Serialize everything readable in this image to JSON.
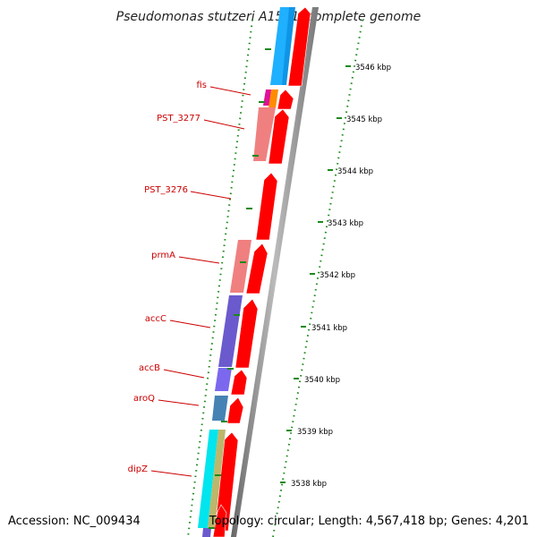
{
  "header": {
    "title": "Pseudomonas stutzeri A1501, complete genome"
  },
  "footer": {
    "accession": "Accession: NC_009434",
    "summary": "Topology: circular; Length: 4,567,418 bp; Genes: 4,201"
  },
  "gene_labels": [
    {
      "name": "fis"
    },
    {
      "name": "PST_3277"
    },
    {
      "name": "PST_3276"
    },
    {
      "name": "prmA"
    },
    {
      "name": "accC"
    },
    {
      "name": "accB"
    },
    {
      "name": "aroQ"
    },
    {
      "name": "dipZ"
    }
  ],
  "scale_ticks": [
    {
      "label": "3546 kbp"
    },
    {
      "label": "3545 kbp"
    },
    {
      "label": "3544 kbp"
    },
    {
      "label": "3543 kbp"
    },
    {
      "label": "3542 kbp"
    },
    {
      "label": "3541 kbp"
    },
    {
      "label": "3540 kbp"
    },
    {
      "label": "3539 kbp"
    },
    {
      "label": "3538 kbp"
    }
  ],
  "colors": {
    "forward_cds": "#ff0000",
    "backbone": "#999999",
    "tick_marks": "#1a8a1a",
    "label_text": "#cc0000",
    "leader_line": "#cc0000"
  }
}
